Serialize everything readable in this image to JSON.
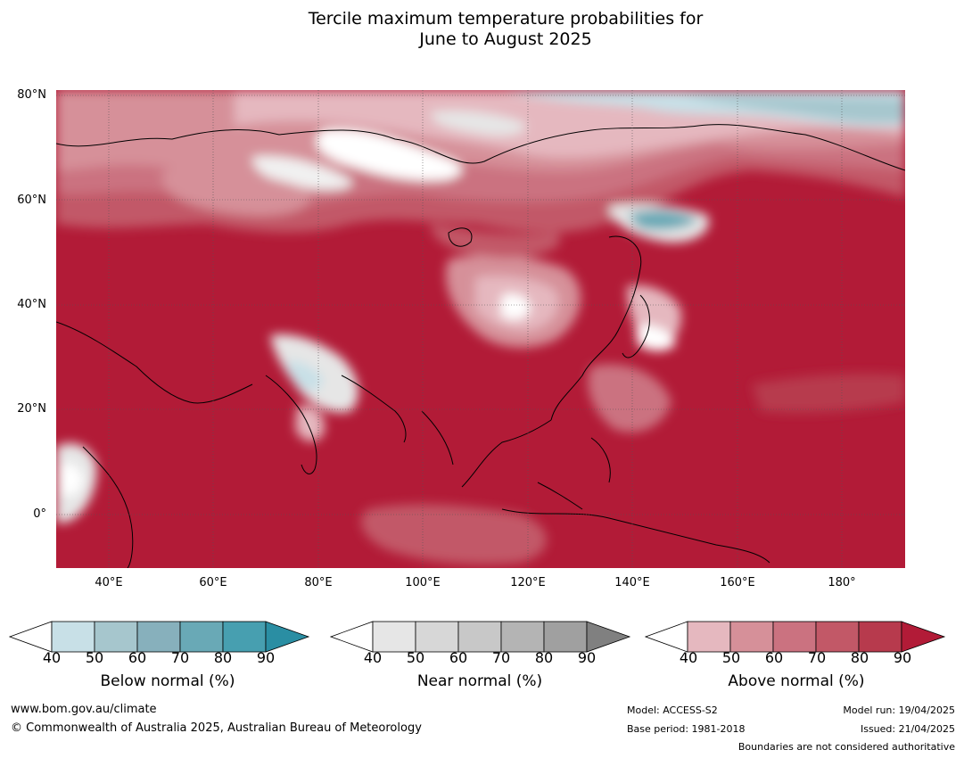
{
  "title_line1": "Tercile maximum temperature probabilities for",
  "title_line2": "June to August 2025",
  "map": {
    "lat_labels": [
      "80°N",
      "60°N",
      "40°N",
      "20°N",
      "0°"
    ],
    "lon_labels": [
      "40°E",
      "60°E",
      "80°E",
      "100°E",
      "120°E",
      "140°E",
      "160°E",
      "180°"
    ],
    "extent": {
      "lon_min": 30,
      "lon_max": 192,
      "lat_min": -10,
      "lat_max": 81
    }
  },
  "legend": {
    "below": {
      "title": "Below normal (%)",
      "ticks": [
        "40",
        "50",
        "60",
        "70",
        "80",
        "90"
      ],
      "colors": [
        "#ffffff",
        "#c8e0e7",
        "#a6c6cd",
        "#87b0bc",
        "#69a9b6",
        "#479fb0",
        "#2a8ea3"
      ]
    },
    "near": {
      "title": "Near normal (%)",
      "ticks": [
        "40",
        "50",
        "60",
        "70",
        "80",
        "90"
      ],
      "colors": [
        "#ffffff",
        "#e6e6e6",
        "#d7d7d7",
        "#c8c8c8",
        "#b4b4b4",
        "#a0a0a0",
        "#808080"
      ]
    },
    "above": {
      "title": "Above normal (%)",
      "ticks": [
        "40",
        "50",
        "60",
        "70",
        "80",
        "90"
      ],
      "colors": [
        "#ffffff",
        "#e5b8bf",
        "#d69099",
        "#cb7280",
        "#c25867",
        "#b73a4d",
        "#b21b37"
      ]
    }
  },
  "footer": {
    "website": "www.bom.gov.au/climate",
    "copyright": "© Commonwealth of Australia 2025, Australian Bureau of Meteorology",
    "model": "Model: ACCESS-S2",
    "base_period": "Base period: 1981-2018",
    "model_run": "Model run: 19/04/2025",
    "issued": "Issued: 21/04/2025",
    "boundaries": "Boundaries are not considered authoritative"
  }
}
